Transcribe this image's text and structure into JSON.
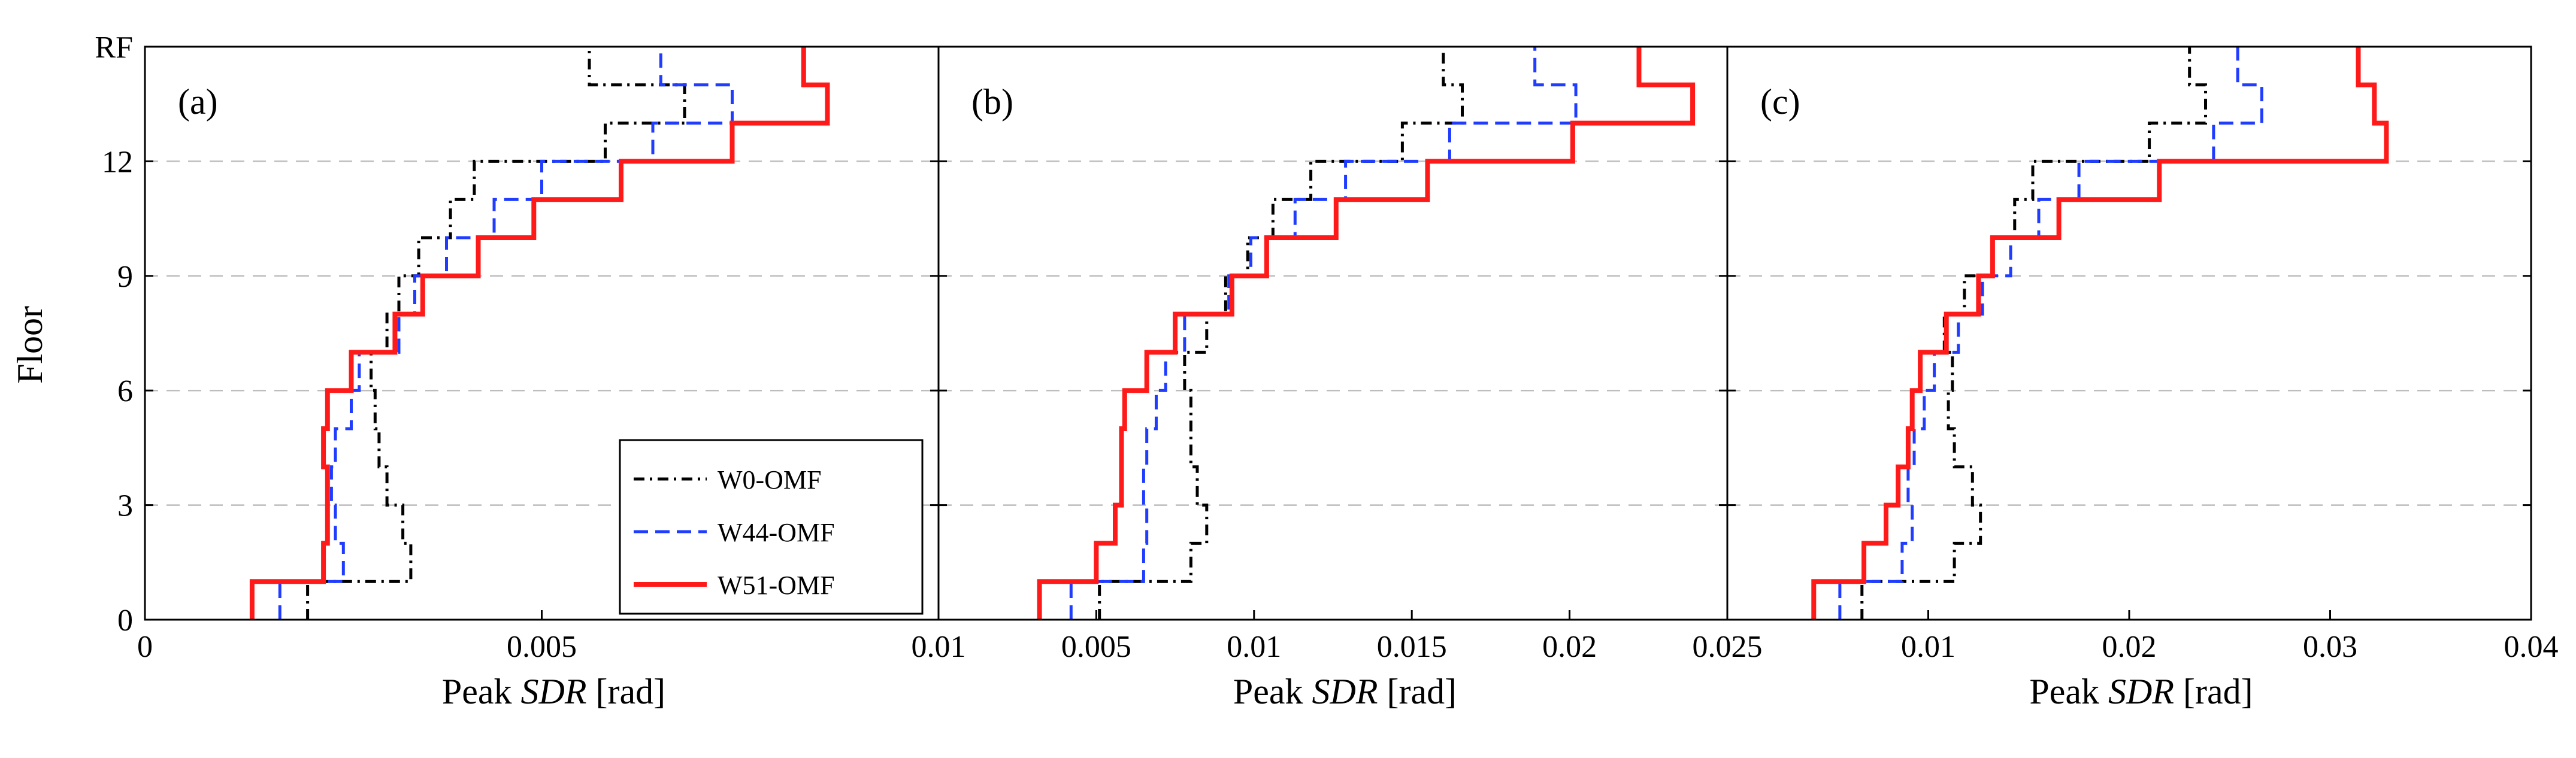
{
  "ylabel": "Floor",
  "yticks": [
    {
      "value": 0,
      "label": "0"
    },
    {
      "value": 3,
      "label": "3"
    },
    {
      "value": 6,
      "label": "6"
    },
    {
      "value": 9,
      "label": "9"
    },
    {
      "value": 12,
      "label": "12"
    },
    {
      "value": 15,
      "label": "RF"
    }
  ],
  "legend": {
    "items": [
      {
        "label": "W0-OMF",
        "color": "#000000",
        "dash": "dashdot"
      },
      {
        "label": "W44-OMF",
        "color": "#1f3cff",
        "dash": "dash"
      },
      {
        "label": "W51-OMF",
        "color": "#ff1a1a",
        "dash": "solid"
      }
    ]
  },
  "chart_data": [
    {
      "type": "line",
      "panel_label": "(a)",
      "xlabel_prefix": "Peak ",
      "xlabel_var": "SDR",
      "xlabel_suffix": " [rad]",
      "ylabel": "Floor",
      "xlim": [
        0,
        0.01
      ],
      "ylim": [
        0,
        15
      ],
      "xticks": [
        {
          "value": 0,
          "label": "0"
        },
        {
          "value": 0.005,
          "label": "0.005"
        },
        {
          "value": 0.01,
          "label": "0.01"
        }
      ],
      "grid": "horizontal dashed",
      "series": [
        {
          "name": "W0-OMF",
          "values": [
            0.00205,
            0.00335,
            0.00325,
            0.00305,
            0.00295,
            0.0029,
            0.00285,
            0.00305,
            0.0032,
            0.00345,
            0.00385,
            0.00415,
            0.0058,
            0.0068,
            0.0056
          ]
        },
        {
          "name": "W44-OMF",
          "values": [
            0.0017,
            0.0025,
            0.0024,
            0.00235,
            0.0024,
            0.0026,
            0.0027,
            0.0032,
            0.0034,
            0.0038,
            0.0044,
            0.005,
            0.0064,
            0.0074,
            0.0065
          ]
        },
        {
          "name": "W51-OMF",
          "values": [
            0.00135,
            0.00225,
            0.0023,
            0.0023,
            0.00225,
            0.0023,
            0.0026,
            0.00315,
            0.0035,
            0.0042,
            0.0049,
            0.006,
            0.0074,
            0.0086,
            0.0083
          ]
        }
      ]
    },
    {
      "type": "line",
      "panel_label": "(b)",
      "xlabel_prefix": "Peak ",
      "xlabel_var": "SDR",
      "xlabel_suffix": " [rad]",
      "ylabel": "Floor",
      "xlim": [
        0,
        0.025
      ],
      "ylim": [
        0,
        15
      ],
      "xticks": [
        {
          "value": 0.005,
          "label": "0.005"
        },
        {
          "value": 0.01,
          "label": "0.01"
        },
        {
          "value": 0.015,
          "label": "0.015"
        },
        {
          "value": 0.02,
          "label": "0.02"
        },
        {
          "value": 0.025,
          "label": "0.025"
        }
      ],
      "grid": "horizontal dashed",
      "series": [
        {
          "name": "W0-OMF",
          "values": [
            0.0051,
            0.008,
            0.0085,
            0.0082,
            0.008,
            0.008,
            0.0078,
            0.0085,
            0.0091,
            0.0098,
            0.0106,
            0.0118,
            0.0147,
            0.0166,
            0.016
          ]
        },
        {
          "name": "W44-OMF",
          "values": [
            0.0042,
            0.0065,
            0.0066,
            0.0065,
            0.0066,
            0.0069,
            0.0072,
            0.0078,
            0.0092,
            0.0099,
            0.0113,
            0.0129,
            0.0162,
            0.0202,
            0.0189
          ]
        },
        {
          "name": "W51-OMF",
          "values": [
            0.0032,
            0.005,
            0.0056,
            0.0058,
            0.0058,
            0.0059,
            0.0066,
            0.0075,
            0.0093,
            0.0104,
            0.0126,
            0.0155,
            0.0201,
            0.0239,
            0.0222
          ]
        }
      ]
    },
    {
      "type": "line",
      "panel_label": "(c)",
      "xlabel_prefix": "Peak ",
      "xlabel_var": "SDR",
      "xlabel_suffix": " [rad]",
      "ylabel": "Floor",
      "xlim": [
        0,
        0.04
      ],
      "ylim": [
        0,
        15
      ],
      "xticks": [
        {
          "value": 0.01,
          "label": "0.01"
        },
        {
          "value": 0.02,
          "label": "0.02"
        },
        {
          "value": 0.03,
          "label": "0.03"
        },
        {
          "value": 0.04,
          "label": "0.04"
        }
      ],
      "grid": "horizontal dashed",
      "series": [
        {
          "name": "W0-OMF",
          "values": [
            0.0067,
            0.0113,
            0.0126,
            0.0122,
            0.0113,
            0.011,
            0.0112,
            0.0108,
            0.0118,
            0.0132,
            0.0143,
            0.0152,
            0.021,
            0.0238,
            0.023
          ]
        },
        {
          "name": "W44-OMF",
          "values": [
            0.0056,
            0.0087,
            0.0092,
            0.009,
            0.0093,
            0.0098,
            0.0103,
            0.0115,
            0.0127,
            0.0141,
            0.0155,
            0.0175,
            0.0242,
            0.0266,
            0.0254
          ]
        },
        {
          "name": "W51-OMF",
          "values": [
            0.0043,
            0.0068,
            0.0079,
            0.0085,
            0.009,
            0.0092,
            0.0096,
            0.0109,
            0.0125,
            0.0132,
            0.0165,
            0.0215,
            0.0328,
            0.0322,
            0.0314
          ]
        }
      ]
    }
  ]
}
